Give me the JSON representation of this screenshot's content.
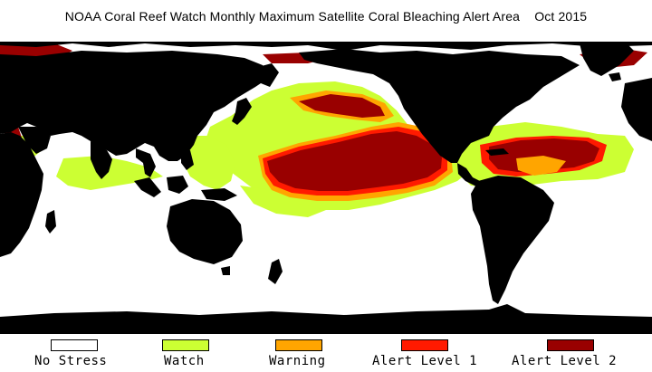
{
  "title": "NOAA Coral Reef Watch Monthly Maximum Satellite Coral Bleaching Alert Area    Oct 2015",
  "map": {
    "projection": "equirectangular",
    "colors": {
      "land": "#000000",
      "ocean_no_stress": "#ffffff",
      "watch": "#ccff33",
      "warning": "#ffa500",
      "alert_level_1": "#ff1a00",
      "alert_level_2": "#990000"
    }
  },
  "legend": {
    "items": [
      {
        "label": "No Stress",
        "color": "#ffffff"
      },
      {
        "label": "Watch",
        "color": "#ccff33"
      },
      {
        "label": "Warning",
        "color": "#ffa500"
      },
      {
        "label": "Alert Level 1",
        "color": "#ff1a00"
      },
      {
        "label": "Alert Level 2",
        "color": "#990000"
      }
    ]
  }
}
